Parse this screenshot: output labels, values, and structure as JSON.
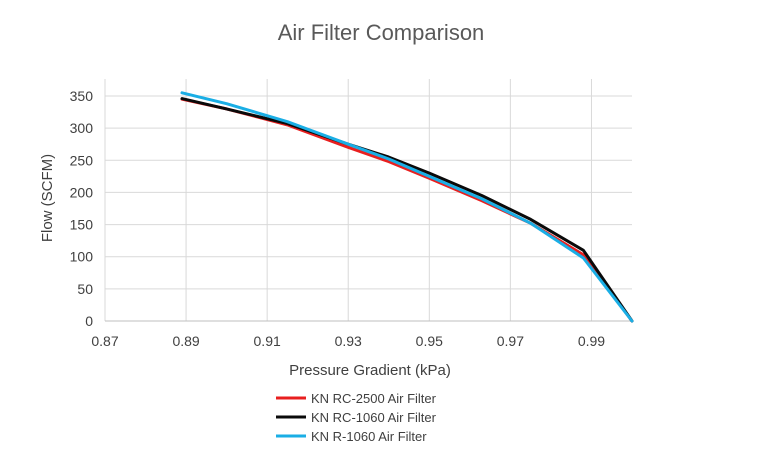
{
  "chart_data": {
    "type": "line",
    "title": "Air Filter Comparison",
    "xlabel": "Pressure Gradient (kPa)",
    "ylabel": "Flow (SCFM)",
    "xlim": [
      0.87,
      1.0
    ],
    "ylim": [
      0,
      350
    ],
    "x_ticks": [
      0.87,
      0.89,
      0.91,
      0.93,
      0.95,
      0.97,
      0.99
    ],
    "x_tick_labels": [
      "0.87",
      "0.89",
      "0.91",
      "0.93",
      "0.95",
      "0.97",
      "0.99"
    ],
    "y_ticks": [
      0,
      50,
      100,
      150,
      200,
      250,
      300,
      350
    ],
    "y_tick_labels": [
      "0",
      "50",
      "100",
      "150",
      "200",
      "250",
      "300",
      "350"
    ],
    "grid": true,
    "legend_position": "bottom",
    "series": [
      {
        "name": "KN RC-2500 Air Filter",
        "color": "#e81f1f",
        "points": [
          [
            0.889,
            345
          ],
          [
            0.9,
            330
          ],
          [
            0.915,
            305
          ],
          [
            0.93,
            270
          ],
          [
            0.94,
            248
          ],
          [
            0.95,
            222
          ],
          [
            0.963,
            187
          ],
          [
            0.975,
            152
          ],
          [
            0.988,
            103
          ],
          [
            1.0,
            0
          ]
        ]
      },
      {
        "name": "KN RC-1060 Air Filter",
        "color": "#0a0a0a",
        "points": [
          [
            0.889,
            346
          ],
          [
            0.9,
            330
          ],
          [
            0.915,
            307
          ],
          [
            0.93,
            275
          ],
          [
            0.94,
            255
          ],
          [
            0.95,
            230
          ],
          [
            0.963,
            195
          ],
          [
            0.975,
            158
          ],
          [
            0.988,
            110
          ],
          [
            1.0,
            0
          ]
        ]
      },
      {
        "name": "KN R-1060 Air Filter",
        "color": "#1aaee5",
        "points": [
          [
            0.889,
            355
          ],
          [
            0.9,
            338
          ],
          [
            0.915,
            310
          ],
          [
            0.93,
            275
          ],
          [
            0.94,
            252
          ],
          [
            0.95,
            225
          ],
          [
            0.963,
            190
          ],
          [
            0.975,
            152
          ],
          [
            0.988,
            98
          ],
          [
            1.0,
            0
          ]
        ]
      }
    ]
  }
}
